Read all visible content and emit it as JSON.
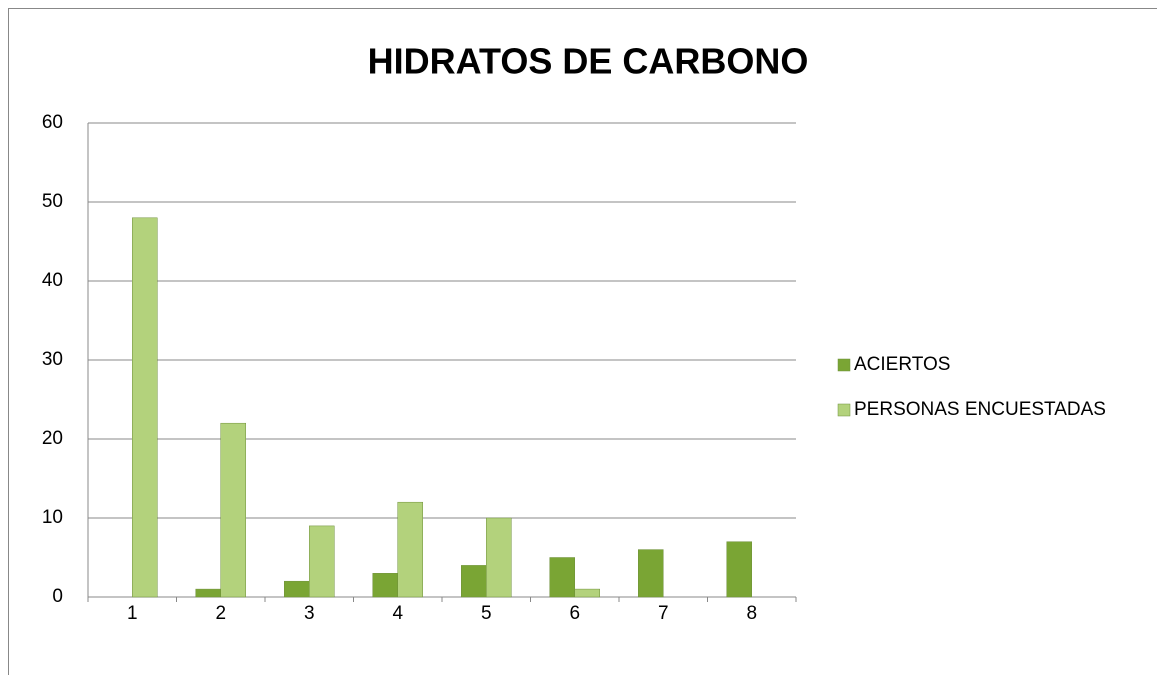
{
  "chart_data": {
    "type": "bar",
    "title": "HIDRATOS DE CARBONO",
    "categories": [
      "1",
      "2",
      "3",
      "4",
      "5",
      "6",
      "7",
      "8"
    ],
    "series": [
      {
        "name": "ACIERTOS",
        "color": "#7aa534",
        "values": [
          0,
          1,
          2,
          3,
          4,
          5,
          6,
          7
        ]
      },
      {
        "name": "PERSONAS ENCUESTADAS",
        "color": "#b3d27c",
        "values": [
          48,
          22,
          9,
          12,
          10,
          1,
          0,
          0
        ]
      }
    ],
    "ylim": [
      0,
      60
    ],
    "yticks": [
      0,
      10,
      20,
      30,
      40,
      50,
      60
    ],
    "grid": true,
    "legend": "right"
  }
}
